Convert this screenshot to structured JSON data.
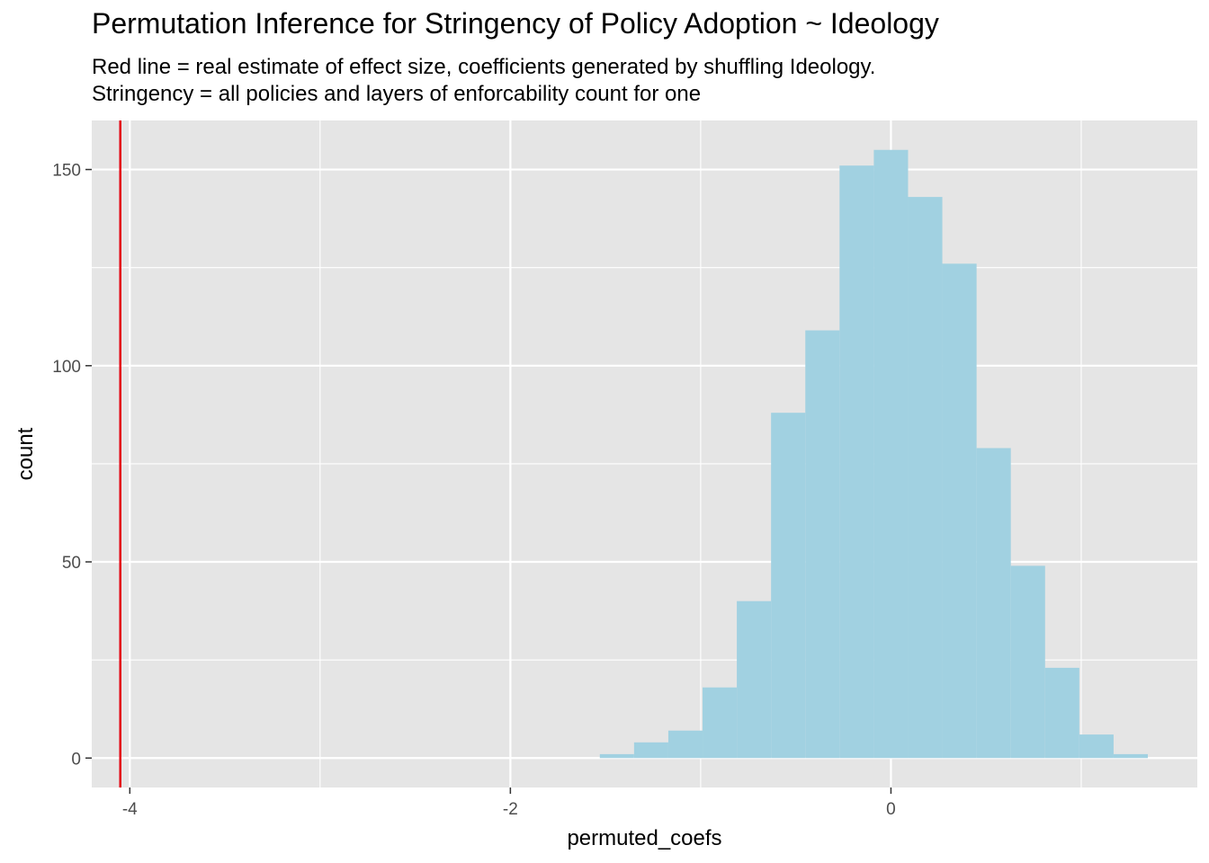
{
  "chart_data": {
    "type": "bar",
    "title": "Permutation Inference for Stringency of Policy Adoption ~ Ideology",
    "subtitle_lines": [
      "Red line = real estimate of effect size, coefficients generated by shuffling Ideology.",
      "Stringency = all policies and layers of enforcability count for one"
    ],
    "xlabel": "permuted_coefs",
    "ylabel": "count",
    "xlim": [
      -4.2,
      1.61
    ],
    "ylim": [
      -7.5,
      162.5
    ],
    "x_ticks": [
      -4,
      -2,
      0
    ],
    "x_tick_labels": [
      "-4",
      "-2",
      "0"
    ],
    "y_ticks": [
      0,
      50,
      100,
      150
    ],
    "y_tick_labels": [
      "0",
      "50",
      "100",
      "150"
    ],
    "grid": true,
    "background": "#e5e5e5",
    "grid_color": "#ffffff",
    "bar_color": "#a1d1e1",
    "reference_line": {
      "x": -4.05,
      "color": "#e3000f",
      "label": "real estimate of effect size"
    },
    "bins": [
      {
        "x0": -1.53,
        "x1": -1.35,
        "count": 1
      },
      {
        "x0": -1.35,
        "x1": -1.17,
        "count": 4
      },
      {
        "x0": -1.17,
        "x1": -0.99,
        "count": 7
      },
      {
        "x0": -0.99,
        "x1": -0.81,
        "count": 18
      },
      {
        "x0": -0.81,
        "x1": -0.63,
        "count": 40
      },
      {
        "x0": -0.63,
        "x1": -0.45,
        "count": 88
      },
      {
        "x0": -0.45,
        "x1": -0.27,
        "count": 109
      },
      {
        "x0": -0.27,
        "x1": -0.09,
        "count": 151
      },
      {
        "x0": -0.09,
        "x1": 0.09,
        "count": 155
      },
      {
        "x0": 0.09,
        "x1": 0.27,
        "count": 143
      },
      {
        "x0": 0.27,
        "x1": 0.45,
        "count": 126
      },
      {
        "x0": 0.45,
        "x1": 0.63,
        "count": 79
      },
      {
        "x0": 0.63,
        "x1": 0.81,
        "count": 49
      },
      {
        "x0": 0.81,
        "x1": 0.99,
        "count": 23
      },
      {
        "x0": 0.99,
        "x1": 1.17,
        "count": 6
      },
      {
        "x0": 1.17,
        "x1": 1.35,
        "count": 1
      }
    ]
  }
}
